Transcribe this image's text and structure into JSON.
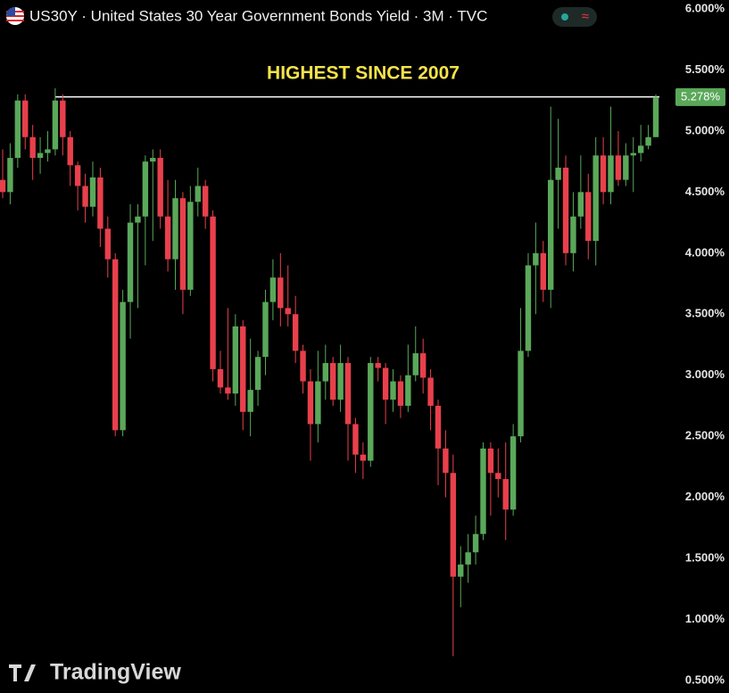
{
  "chart_data": {
    "type": "candlestick",
    "title": "US30Y · United States 30 Year Government Bonds Yield · 3M · TVC",
    "annotation": "HIGHEST SINCE 2007",
    "watermark": "TradingView",
    "up_color": "#5aa85a",
    "down_color": "#e8404c",
    "ylim": [
      0.5,
      6.0
    ],
    "yticks": [
      {
        "value": 6.0,
        "label": "6.000%"
      },
      {
        "value": 5.5,
        "label": "5.500%"
      },
      {
        "value": 5.0,
        "label": "5.000%"
      },
      {
        "value": 4.5,
        "label": "4.500%"
      },
      {
        "value": 4.0,
        "label": "4.000%"
      },
      {
        "value": 3.5,
        "label": "3.500%"
      },
      {
        "value": 3.0,
        "label": "3.000%"
      },
      {
        "value": 2.5,
        "label": "2.500%"
      },
      {
        "value": 2.0,
        "label": "2.000%"
      },
      {
        "value": 1.5,
        "label": "1.500%"
      },
      {
        "value": 1.0,
        "label": "1.000%"
      },
      {
        "value": 0.5,
        "label": "0.500%"
      }
    ],
    "hline": 5.28,
    "last_price": {
      "value": 5.278,
      "label": "5.278%"
    },
    "open": [
      4.6,
      4.5,
      4.78,
      5.25,
      4.95,
      4.78,
      4.82,
      4.85,
      5.25,
      4.95,
      4.72,
      4.55,
      4.38,
      4.62,
      4.2,
      3.95,
      2.55,
      3.6,
      4.25,
      4.3,
      4.75,
      4.78,
      4.3,
      3.95,
      4.45,
      3.7,
      4.42,
      4.55,
      4.3,
      3.05,
      2.9,
      2.85,
      3.4,
      2.7,
      2.88,
      3.15,
      3.6,
      3.8,
      3.55,
      3.5,
      3.2,
      2.95,
      2.6,
      2.95,
      3.1,
      2.8,
      3.1,
      2.6,
      2.35,
      2.3,
      3.1,
      3.06,
      2.8,
      2.95,
      2.75,
      3.0,
      3.18,
      2.98,
      2.75,
      2.4,
      2.2,
      1.35,
      1.45,
      1.55,
      1.7,
      2.4,
      2.2,
      2.15,
      1.9,
      2.5,
      3.2,
      3.9,
      4.0,
      3.7,
      4.6,
      4.7,
      4.0,
      4.3,
      4.5,
      4.1,
      4.8,
      4.5,
      4.8,
      4.6,
      4.8,
      4.82,
      4.88,
      4.95
    ],
    "high": [
      4.85,
      4.9,
      5.3,
      5.3,
      5.05,
      4.95,
      5.0,
      5.35,
      5.3,
      5.0,
      4.75,
      4.65,
      4.75,
      4.7,
      4.3,
      4.0,
      3.7,
      4.4,
      4.4,
      4.8,
      4.85,
      4.85,
      4.6,
      4.6,
      4.5,
      4.55,
      4.7,
      4.6,
      4.35,
      3.2,
      3.55,
      3.5,
      3.45,
      3.3,
      3.2,
      3.7,
      3.95,
      4.0,
      3.9,
      3.65,
      3.25,
      3.05,
      3.2,
      3.25,
      3.15,
      3.25,
      3.15,
      2.65,
      2.45,
      3.15,
      3.15,
      3.1,
      3.05,
      3.0,
      3.25,
      3.4,
      3.3,
      3.05,
      2.8,
      2.55,
      2.35,
      1.6,
      1.7,
      1.85,
      2.45,
      2.45,
      2.4,
      2.45,
      2.6,
      3.55,
      4.0,
      4.25,
      4.1,
      5.2,
      5.1,
      4.8,
      4.5,
      4.8,
      4.65,
      4.95,
      4.95,
      5.2,
      5.0,
      4.9,
      4.95,
      5.05,
      5.05,
      5.3
    ],
    "low": [
      4.45,
      4.4,
      4.7,
      4.85,
      4.6,
      4.65,
      4.75,
      4.8,
      4.8,
      4.55,
      4.35,
      4.25,
      4.3,
      4.05,
      3.8,
      2.5,
      2.5,
      3.3,
      3.55,
      3.9,
      4.1,
      4.2,
      3.85,
      3.7,
      3.5,
      3.65,
      4.3,
      4.2,
      2.95,
      2.85,
      2.8,
      2.75,
      2.55,
      2.5,
      2.75,
      3.0,
      3.45,
      3.4,
      3.4,
      3.1,
      2.85,
      2.3,
      2.45,
      2.8,
      2.75,
      2.7,
      2.3,
      2.2,
      2.15,
      2.25,
      2.95,
      2.6,
      2.7,
      2.65,
      2.7,
      2.95,
      2.85,
      2.55,
      2.1,
      2.0,
      0.7,
      1.1,
      1.3,
      1.45,
      1.65,
      1.85,
      2.0,
      1.65,
      1.85,
      2.45,
      3.15,
      3.5,
      3.6,
      3.55,
      4.2,
      3.9,
      3.85,
      4.2,
      3.95,
      3.9,
      4.4,
      4.4,
      4.55,
      4.55,
      4.5,
      4.75,
      4.85,
      4.95
    ],
    "close": [
      4.5,
      4.78,
      5.25,
      4.95,
      4.78,
      4.82,
      4.85,
      5.25,
      4.95,
      4.72,
      4.55,
      4.38,
      4.62,
      4.2,
      3.95,
      2.55,
      3.6,
      4.25,
      4.3,
      4.75,
      4.78,
      4.3,
      3.95,
      4.45,
      3.7,
      4.42,
      4.55,
      4.3,
      3.05,
      2.9,
      2.85,
      3.4,
      2.7,
      2.88,
      3.15,
      3.6,
      3.8,
      3.55,
      3.5,
      3.2,
      2.95,
      2.6,
      2.95,
      3.1,
      2.8,
      3.1,
      2.6,
      2.35,
      2.3,
      3.1,
      3.06,
      2.8,
      2.95,
      2.75,
      3.0,
      3.18,
      2.98,
      2.75,
      2.4,
      2.2,
      1.35,
      1.45,
      1.55,
      1.7,
      2.4,
      2.2,
      2.15,
      1.9,
      2.5,
      3.2,
      3.9,
      4.0,
      3.7,
      4.6,
      4.7,
      4.0,
      4.3,
      4.5,
      4.1,
      4.8,
      4.5,
      4.8,
      4.6,
      4.8,
      4.82,
      4.88,
      4.95,
      5.278
    ]
  }
}
